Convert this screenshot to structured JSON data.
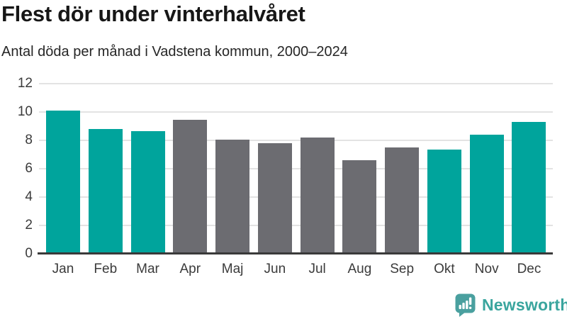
{
  "title": "Flest dör under vinterhalvåret",
  "subtitle": "Antal döda per månad i Vadstena kommun, 2000–2024",
  "chart_data": {
    "type": "bar",
    "title": "Flest dör under vinterhalvåret",
    "subtitle": "Antal döda per månad i Vadstena kommun, 2000–2024",
    "categories": [
      "Jan",
      "Feb",
      "Mar",
      "Apr",
      "Maj",
      "Jun",
      "Jul",
      "Aug",
      "Sep",
      "Okt",
      "Nov",
      "Dec"
    ],
    "values": [
      10.1,
      8.8,
      8.65,
      9.45,
      8.05,
      7.8,
      8.2,
      6.6,
      7.5,
      7.35,
      8.4,
      9.3
    ],
    "bar_seasons": [
      "winter",
      "winter",
      "winter",
      "summer",
      "summer",
      "summer",
      "summer",
      "summer",
      "summer",
      "winter",
      "winter",
      "winter"
    ],
    "xlabel": "",
    "ylabel": "",
    "ylim": [
      0,
      12
    ],
    "yticks": [
      0,
      2,
      4,
      6,
      8,
      10,
      12
    ],
    "grid": true,
    "legend": "none",
    "colors": {
      "winter": "#00a49c",
      "summer": "#6c6c71",
      "gridline": "#e3e3e3",
      "axis": "#3a3a3a",
      "tick_text": "#3b3b3b"
    }
  },
  "footer": {
    "brand": "Newsworthy",
    "logo_icon": "bar-chart-speech-bubble-icon",
    "brand_text_color": "#3aa59e",
    "brand_icon_color": "#4aa09f"
  }
}
